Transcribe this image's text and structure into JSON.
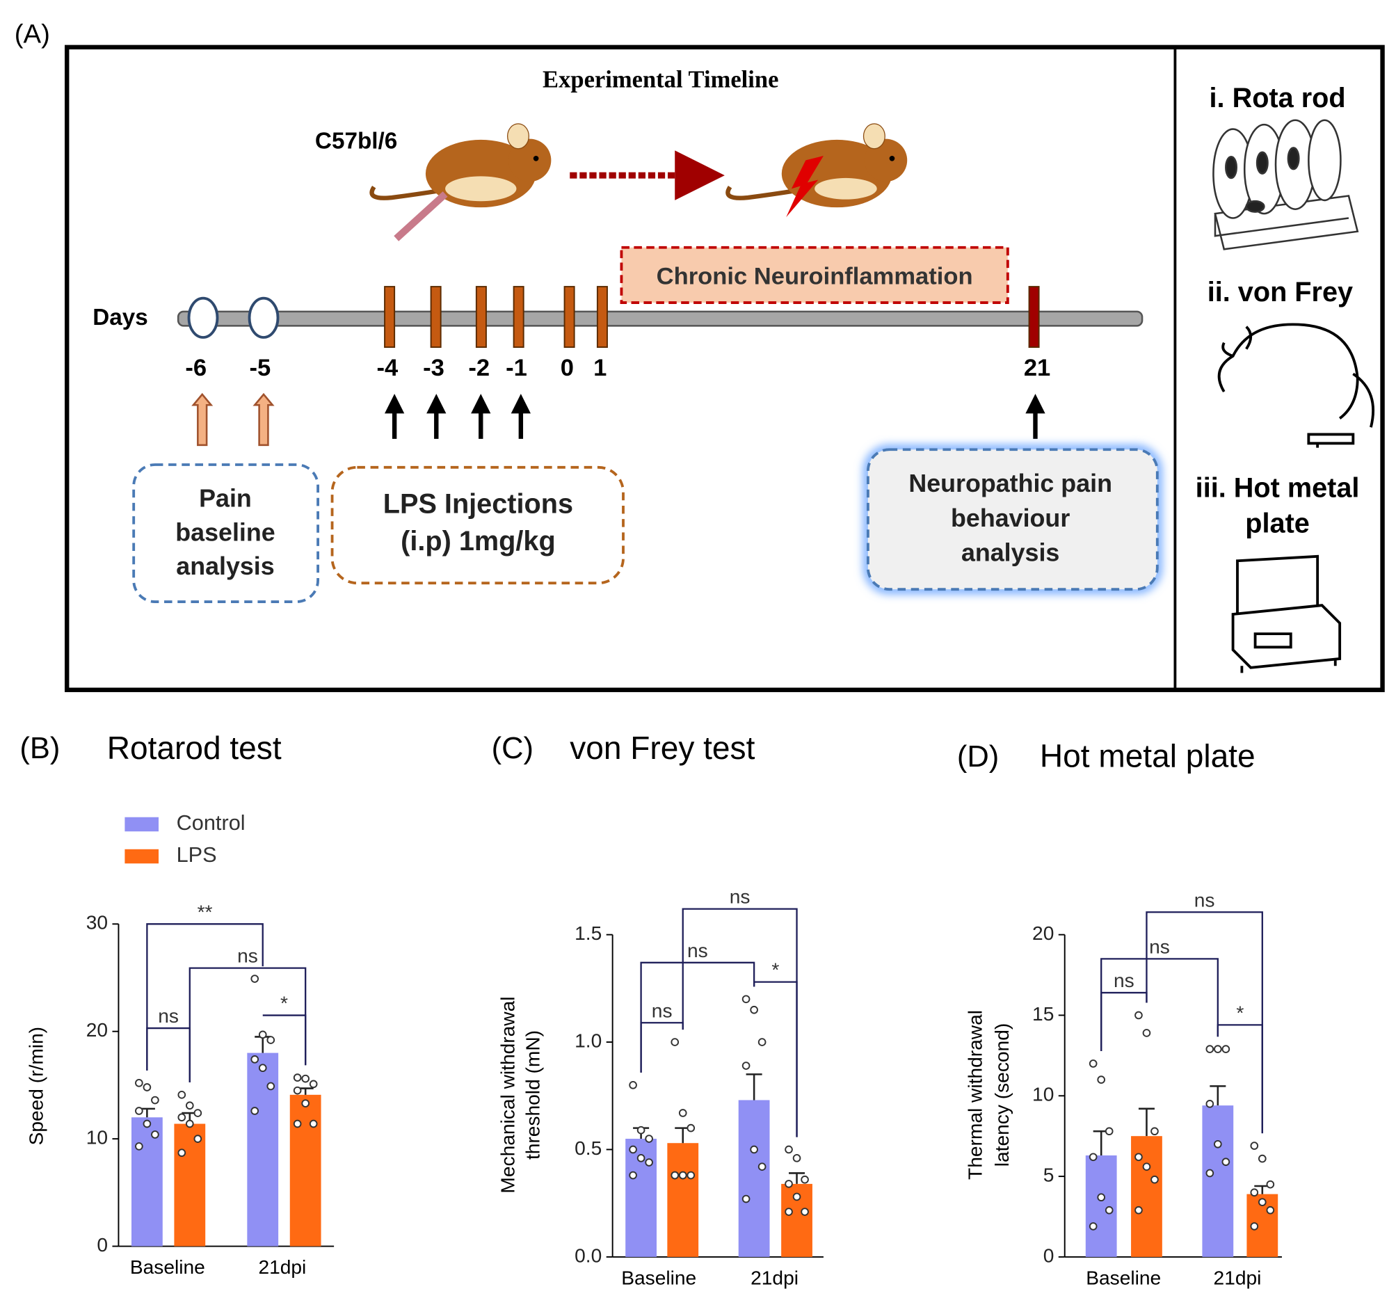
{
  "diagram": {
    "label": "(A)",
    "title": "Experimental Timeline",
    "strain": "C57bl/6",
    "phase": "Chronic Neuroinflammation",
    "axis_label": "Days",
    "days": [
      -6,
      -5,
      -4,
      -3,
      -2,
      -1,
      0,
      1,
      21
    ],
    "boxes": [
      {
        "lines": [
          "Pain",
          "baseline",
          "analysis"
        ]
      },
      {
        "lines": [
          "LPS Injections",
          "(i.p)  1mg/kg"
        ]
      },
      {
        "lines": [
          "Neuropathic pain",
          "behaviour",
          "analysis"
        ]
      }
    ],
    "tests": [
      {
        "lines": [
          "i. Rota rod"
        ]
      },
      {
        "lines": [
          "ii.  von Frey"
        ]
      },
      {
        "lines": [
          "iii.  Hot metal",
          "plate"
        ]
      }
    ]
  },
  "chart_data": [
    {
      "type": "bar",
      "panel": "(B)",
      "title": "Rotarod test",
      "ylabel": [
        "Speed (r/min)"
      ],
      "categories": [
        "Baseline",
        "21dpi"
      ],
      "ylim": [
        0,
        30
      ],
      "yticks": [
        0,
        10,
        20,
        30
      ],
      "series": [
        {
          "name": "Control",
          "color": "#9090f4",
          "values": [
            12.0,
            18.0
          ],
          "errors": [
            0.8,
            1.5
          ],
          "points": [
            [
              15.2,
              14.8,
              13.6,
              12.6,
              11.4,
              10.4,
              9.3
            ],
            [
              24.9,
              19.7,
              19.2,
              17.4,
              16.6,
              14.9,
              12.6
            ]
          ]
        },
        {
          "name": "LPS",
          "color": "#ff6a13",
          "values": [
            11.4,
            14.1
          ],
          "errors": [
            1.0,
            0.6
          ],
          "points": [
            [
              14.1,
              13.1,
              12.4,
              12.0,
              11.4,
              10.0,
              8.7
            ],
            [
              15.7,
              15.6,
              15.1,
              14.5,
              13.3,
              11.4,
              11.4
            ]
          ]
        }
      ],
      "brackets": [
        {
          "label": "**",
          "from": [
            0,
            0
          ],
          "to": [
            0,
            1
          ],
          "y": 30
        },
        {
          "label": "ns",
          "from": [
            1,
            0
          ],
          "to": [
            1,
            1
          ],
          "y": 25.9
        },
        {
          "label": "*",
          "from": [
            0,
            1
          ],
          "to": [
            1,
            1
          ],
          "y": 21.5
        },
        {
          "label": "ns",
          "from": [
            0,
            0
          ],
          "to": [
            1,
            0
          ],
          "y": 20.3
        }
      ]
    },
    {
      "type": "bar",
      "panel": "(C)",
      "title": "von Frey test",
      "ylabel": [
        "Mechanical withdrawal",
        "threshold (mN)"
      ],
      "categories": [
        "Baseline",
        "21dpi"
      ],
      "ylim": [
        0,
        1.5
      ],
      "yticks": [
        {
          "value": 0,
          "label": "0.0"
        },
        0.5,
        {
          "value": 1,
          "label": "1.0"
        },
        1.5
      ],
      "series": [
        {
          "color": "#9090f4",
          "values": [
            0.55,
            0.73
          ],
          "errors": [
            0.05,
            0.12
          ],
          "points": [
            [
              0.8,
              0.59,
              0.55,
              0.5,
              0.46,
              0.44,
              0.38
            ],
            [
              1.2,
              1.15,
              1.0,
              0.89,
              0.5,
              0.42,
              0.27
            ]
          ]
        },
        {
          "color": "#ff6a13",
          "values": [
            0.53,
            0.34
          ],
          "errors": [
            0.07,
            0.05
          ],
          "points": [
            [
              1.0,
              0.67,
              0.6,
              0.38,
              0.38,
              0.38,
              0.38,
              0.38
            ],
            [
              0.5,
              0.46,
              0.36,
              0.34,
              0.28,
              0.21,
              0.21
            ]
          ]
        }
      ],
      "brackets": [
        {
          "label": "ns",
          "from": [
            1,
            0
          ],
          "to": [
            1,
            1
          ],
          "y": 1.62
        },
        {
          "label": "ns",
          "from": [
            0,
            0
          ],
          "to": [
            0,
            1
          ],
          "y": 1.37
        },
        {
          "label": "*",
          "from": [
            0,
            1
          ],
          "to": [
            1,
            1
          ],
          "y": 1.28
        },
        {
          "label": "ns",
          "from": [
            0,
            0
          ],
          "to": [
            1,
            0
          ],
          "y": 1.09
        }
      ]
    },
    {
      "type": "bar",
      "panel": "(D)",
      "title": "Hot metal plate",
      "ylabel": [
        "Thermal withdrawal",
        "latency (second)"
      ],
      "categories": [
        "Baseline",
        "21dpi"
      ],
      "ylim": [
        0,
        20
      ],
      "yticks": [
        0,
        5,
        10,
        15,
        20
      ],
      "series": [
        {
          "color": "#9090f4",
          "values": [
            6.3,
            9.4
          ],
          "errors": [
            1.5,
            1.2
          ],
          "points": [
            [
              12,
              11,
              7.8,
              6.2,
              3.7,
              2.9,
              1.9
            ],
            [
              12.9,
              12.9,
              12.9,
              9.5,
              7,
              5.9,
              5.2
            ]
          ]
        },
        {
          "color": "#ff6a13",
          "values": [
            7.5,
            3.9
          ],
          "errors": [
            1.7,
            0.5
          ],
          "points": [
            [
              15,
              13.9,
              7.8,
              6.2,
              5.6,
              4.8,
              2.9
            ],
            [
              6.9,
              6.1,
              4.5,
              4,
              3.4,
              2.9,
              1.9
            ]
          ]
        }
      ],
      "brackets": [
        {
          "label": "ns",
          "from": [
            1,
            0
          ],
          "to": [
            1,
            1
          ],
          "y": 21.4
        },
        {
          "label": "ns",
          "from": [
            0,
            0
          ],
          "to": [
            0,
            1
          ],
          "y": 18.5
        },
        {
          "label": "*",
          "from": [
            0,
            1
          ],
          "to": [
            1,
            1
          ],
          "y": 14.4
        },
        {
          "label": "ns",
          "from": [
            0,
            0
          ],
          "to": [
            1,
            0
          ],
          "y": 16.4
        }
      ]
    }
  ]
}
